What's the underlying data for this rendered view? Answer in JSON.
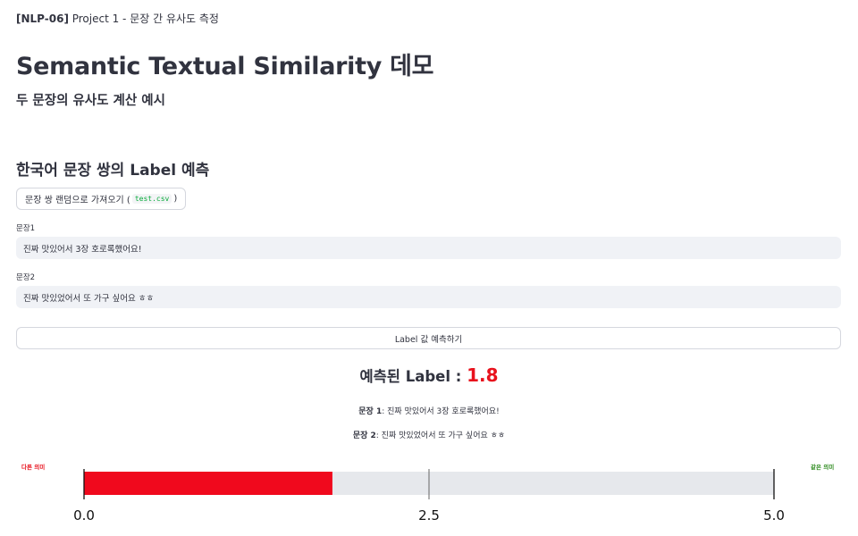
{
  "header": {
    "tag": "[NLP-06]",
    "caption": " Project 1 - 문장 간 유사도 측정",
    "title": "Semantic Textual Similarity 데모",
    "subtitle": "두 문장의 유사도 계산 예시"
  },
  "section": {
    "title": "한국어 문장 쌍의 Label 예측"
  },
  "random_button": {
    "label_before": "문장 쌍 랜덤으로 가져오기 (",
    "code": "test.csv",
    "label_after": ")"
  },
  "inputs": {
    "sentence1_label": "문장1",
    "sentence1_value": "진짜 맛있어서 3장 호로록했어요!",
    "sentence2_label": "문장2",
    "sentence2_value": "진짜 맛있었어서 또 가구 싶어요 ㅎㅎ"
  },
  "predict_button": {
    "label": "Label 값 예측하기"
  },
  "result": {
    "label": "예측된 Label : ",
    "value": "1.8",
    "value_color": "#e8121d",
    "sentence1_prefix": "문장 1",
    "sentence1_text": ": 진짜 맛있어서 3장 호로록했어요!",
    "sentence2_prefix": "문장 2",
    "sentence2_text": ": 진짜 맛있었어서 또 가구 싶어요 ㅎㅎ"
  },
  "chart_data": {
    "type": "bar",
    "orientation": "horizontal",
    "value": 1.8,
    "xlim": [
      0,
      5
    ],
    "ticks": [
      0.0,
      2.5,
      5.0
    ],
    "tick_labels": [
      "0.0",
      "2.5",
      "5.0"
    ],
    "left_label": "다른 의미",
    "right_label": "같은 의미",
    "left_label_color": "#e8121d",
    "right_label_color": "#2e8b1f",
    "bar_color": "#f0091d",
    "track_color": "#e6e8ec"
  }
}
